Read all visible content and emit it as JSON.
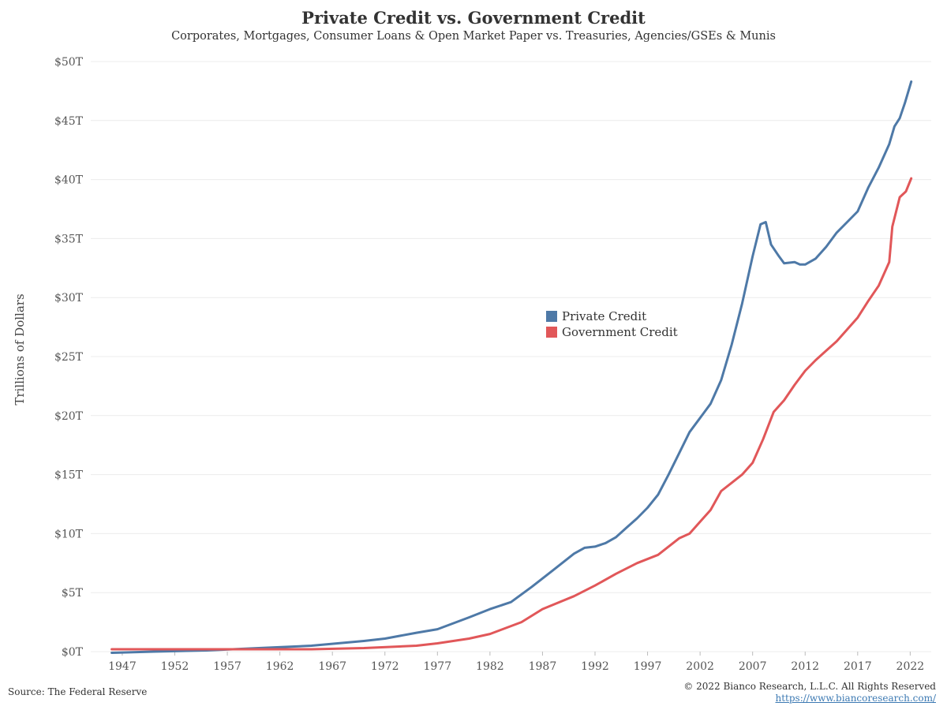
{
  "header": {
    "title": "Private Credit vs. Government Credit",
    "subtitle": "Corporates, Mortgages, Consumer Loans & Open Market Paper vs. Treasuries, Agencies/GSEs & Munis"
  },
  "footer": {
    "source": "Source: The Federal Reserve",
    "copyright": "© 2022 Bianco Research, L.L.C. All Rights Reserved",
    "url": "https://www.biancoresearch.com/"
  },
  "chart_data": {
    "type": "line",
    "ylabel": "Trillions of Dollars",
    "xlim": [
      1944,
      2024
    ],
    "ylim": [
      0,
      50
    ],
    "x_ticks": [
      1947,
      1952,
      1957,
      1962,
      1967,
      1972,
      1977,
      1982,
      1987,
      1992,
      1997,
      2002,
      2007,
      2012,
      2017,
      2022
    ],
    "x_tick_labels": [
      "1947",
      "1952",
      "1957",
      "1962",
      "1967",
      "1972",
      "1977",
      "1982",
      "1987",
      "1992",
      "1997",
      "2002",
      "2007",
      "2012",
      "2017",
      "2022"
    ],
    "y_ticks": [
      0,
      5,
      10,
      15,
      20,
      25,
      30,
      35,
      40,
      45,
      50
    ],
    "y_tick_labels": [
      "$0T",
      "$5T",
      "$10T",
      "$15T",
      "$20T",
      "$25T",
      "$30T",
      "$35T",
      "$40T",
      "$45T",
      "$50T"
    ],
    "grid": true,
    "legend_position": "center-right",
    "series": [
      {
        "name": "Private Credit",
        "color": "#4e79a7",
        "points": [
          [
            1946,
            -0.1
          ],
          [
            1950,
            0.0
          ],
          [
            1955,
            0.1
          ],
          [
            1960,
            0.3
          ],
          [
            1965,
            0.5
          ],
          [
            1970,
            0.9
          ],
          [
            1972,
            1.1
          ],
          [
            1975,
            1.6
          ],
          [
            1977,
            1.9
          ],
          [
            1980,
            2.9
          ],
          [
            1982,
            3.6
          ],
          [
            1984,
            4.2
          ],
          [
            1986,
            5.5
          ],
          [
            1988,
            6.9
          ],
          [
            1990,
            8.3
          ],
          [
            1991,
            8.8
          ],
          [
            1992,
            8.9
          ],
          [
            1993,
            9.2
          ],
          [
            1994,
            9.7
          ],
          [
            1995,
            10.5
          ],
          [
            1996,
            11.3
          ],
          [
            1997,
            12.2
          ],
          [
            1998,
            13.3
          ],
          [
            1999,
            15.0
          ],
          [
            2000,
            16.8
          ],
          [
            2001,
            18.6
          ],
          [
            2002,
            19.8
          ],
          [
            2003,
            21.0
          ],
          [
            2004,
            23.0
          ],
          [
            2005,
            26.0
          ],
          [
            2006,
            29.5
          ],
          [
            2007,
            33.5
          ],
          [
            2007.75,
            36.2
          ],
          [
            2008.25,
            36.4
          ],
          [
            2008.75,
            34.5
          ],
          [
            2009.5,
            33.5
          ],
          [
            2010,
            32.9
          ],
          [
            2011,
            33.0
          ],
          [
            2011.5,
            32.8
          ],
          [
            2012,
            32.8
          ],
          [
            2013,
            33.3
          ],
          [
            2014,
            34.3
          ],
          [
            2015,
            35.5
          ],
          [
            2016,
            36.4
          ],
          [
            2017,
            37.3
          ],
          [
            2018,
            39.3
          ],
          [
            2019,
            41.0
          ],
          [
            2020,
            43.0
          ],
          [
            2020.5,
            44.5
          ],
          [
            2021,
            45.2
          ],
          [
            2021.5,
            46.5
          ],
          [
            2022.1,
            48.3
          ]
        ]
      },
      {
        "name": "Government Credit",
        "color": "#e15759",
        "points": [
          [
            1946,
            0.2
          ],
          [
            1950,
            0.2
          ],
          [
            1955,
            0.2
          ],
          [
            1960,
            0.2
          ],
          [
            1965,
            0.2
          ],
          [
            1970,
            0.3
          ],
          [
            1975,
            0.5
          ],
          [
            1977,
            0.7
          ],
          [
            1980,
            1.1
          ],
          [
            1982,
            1.5
          ],
          [
            1985,
            2.5
          ],
          [
            1987,
            3.6
          ],
          [
            1990,
            4.7
          ],
          [
            1992,
            5.6
          ],
          [
            1994,
            6.6
          ],
          [
            1996,
            7.5
          ],
          [
            1998,
            8.2
          ],
          [
            2000,
            9.6
          ],
          [
            2001,
            10.0
          ],
          [
            2002,
            11.0
          ],
          [
            2003,
            12.0
          ],
          [
            2004,
            13.6
          ],
          [
            2005,
            14.3
          ],
          [
            2006,
            15.0
          ],
          [
            2007,
            16.0
          ],
          [
            2008,
            18.0
          ],
          [
            2009,
            20.3
          ],
          [
            2010,
            21.3
          ],
          [
            2011,
            22.6
          ],
          [
            2012,
            23.8
          ],
          [
            2013,
            24.7
          ],
          [
            2014,
            25.5
          ],
          [
            2015,
            26.3
          ],
          [
            2016,
            27.3
          ],
          [
            2017,
            28.3
          ],
          [
            2018,
            29.7
          ],
          [
            2019,
            31.0
          ],
          [
            2020,
            33.0
          ],
          [
            2020.3,
            36.0
          ],
          [
            2021,
            38.5
          ],
          [
            2021.6,
            39.0
          ],
          [
            2022.1,
            40.1
          ]
        ]
      }
    ]
  }
}
